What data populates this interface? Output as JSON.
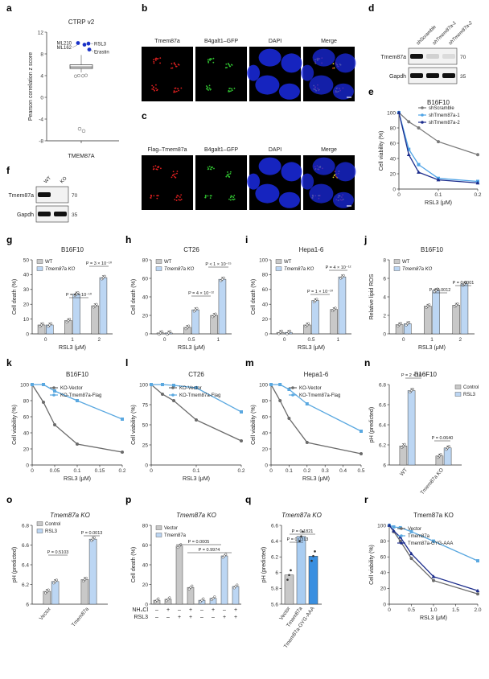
{
  "panel_labels": {
    "a": "a",
    "b": "b",
    "c": "c",
    "d": "d",
    "e": "e",
    "f": "f",
    "g": "g",
    "h": "h",
    "i": "i",
    "j": "j",
    "k": "k",
    "l": "l",
    "m": "m",
    "n": "n",
    "o": "o",
    "p": "p",
    "q": "q",
    "r": "r"
  },
  "colors": {
    "wt": "#c8c8c8",
    "ko": "#bcd6f3",
    "vector_line": "#6b6b6b",
    "flag_line": "#5aa8e0",
    "sh_scramble": "#7a7a7a",
    "sh1": "#4ea3e6",
    "sh2": "#1b2c8c",
    "dot_blue": "#1a32c8",
    "q_light": "#a9cdf2",
    "q_dark": "#3a8fe0"
  },
  "microscopy": {
    "b": {
      "headers": [
        "Tmem87a",
        "B4galt1–GFP",
        "DAPI",
        "Merge"
      ]
    },
    "c": {
      "headers": [
        "Flag–Tmem87a",
        "B4galt1–GFP",
        "DAPI",
        "Merge"
      ]
    }
  },
  "blots": {
    "d": {
      "lanes": [
        "shScramble",
        "shTmem87a-1",
        "shTmem87a-2"
      ],
      "rows": [
        {
          "label": "Tmem87a",
          "mw": "70"
        },
        {
          "label": "Gapdh",
          "mw": "35"
        }
      ]
    },
    "f": {
      "lanes": [
        "WT",
        "KO"
      ],
      "rows": [
        {
          "label": "Tmem87a",
          "mw": "70"
        },
        {
          "label": "Gapdh",
          "mw": "35"
        }
      ]
    }
  },
  "chart_data": [
    {
      "id": "a",
      "type": "scatter",
      "title": "CTRP v2",
      "xlabel": "TMEM87A",
      "ylabel": "Pearson correlation z score",
      "ylim": [
        -8,
        12
      ],
      "yticks": [
        -8,
        -4,
        0,
        4,
        8,
        12
      ],
      "highlighted": [
        {
          "label": "ML210",
          "y": 10.0
        },
        {
          "label": "ML162",
          "y": 9.7
        },
        {
          "label": "RSL3",
          "y": 9.9
        },
        {
          "label": "Erastin",
          "y": 8.8
        }
      ],
      "box": {
        "median": 5.6,
        "q1": 5.3,
        "q3": 6.0
      },
      "outliers_low": [
        -5.8,
        -6.2
      ]
    },
    {
      "id": "e",
      "type": "line",
      "title": "B16F10",
      "xlabel": "RSL3 (μM)",
      "ylabel": "Cell viability (%)",
      "xlim": [
        0,
        0.2
      ],
      "ylim": [
        0,
        100
      ],
      "xticks": [
        "0",
        "0.1",
        "0.2"
      ],
      "yticks": [
        0,
        20,
        40,
        60,
        80,
        100
      ],
      "legend": [
        "shScramble",
        "shTmem87a-1",
        "shTmem87a-2"
      ],
      "series": [
        {
          "name": "shScramble",
          "x": [
            0,
            0.025,
            0.05,
            0.1,
            0.2
          ],
          "y": [
            100,
            88,
            80,
            62,
            45
          ]
        },
        {
          "name": "shTmem87a-1",
          "x": [
            0,
            0.025,
            0.05,
            0.1,
            0.2
          ],
          "y": [
            100,
            52,
            32,
            14,
            10
          ]
        },
        {
          "name": "shTmem87a-2",
          "x": [
            0,
            0.025,
            0.05,
            0.1,
            0.2
          ],
          "y": [
            100,
            45,
            22,
            12,
            8
          ]
        }
      ]
    },
    {
      "id": "g",
      "type": "bar",
      "title": "B16F10",
      "xlabel": "RSL3 (μM)",
      "ylabel": "Cell death (%)",
      "categories": [
        "0",
        "1",
        "2"
      ],
      "ylim": [
        0,
        50
      ],
      "yticks": [
        0,
        10,
        20,
        30,
        40,
        50
      ],
      "legend": [
        "WT",
        "Tmem87a KO"
      ],
      "series": [
        {
          "name": "WT",
          "values": [
            6,
            9,
            19
          ]
        },
        {
          "name": "Tmem87a KO",
          "values": [
            6,
            27,
            38
          ]
        }
      ],
      "annotations": [
        "P = 4 × 10⁻¹⁰",
        "P = 3 × 10⁻¹⁰"
      ]
    },
    {
      "id": "h",
      "type": "bar",
      "title": "CT26",
      "xlabel": "RSL3 (μM)",
      "ylabel": "Cell death (%)",
      "categories": [
        "0",
        "0.5",
        "1"
      ],
      "ylim": [
        0,
        80
      ],
      "yticks": [
        0,
        20,
        40,
        60,
        80
      ],
      "legend": [
        "WT",
        "Tmem87a KO"
      ],
      "series": [
        {
          "name": "WT",
          "values": [
            1,
            7,
            20
          ]
        },
        {
          "name": "Tmem87a KO",
          "values": [
            1,
            26,
            59
          ]
        }
      ],
      "annotations": [
        "P = 4 × 10⁻¹²",
        "P < 1 × 10⁻¹⁵"
      ]
    },
    {
      "id": "i",
      "type": "bar",
      "title": "Hepa1-6",
      "xlabel": "RSL3 (μM)",
      "ylabel": "Cell death (%)",
      "categories": [
        "0",
        "0.5",
        "1"
      ],
      "ylim": [
        0,
        100
      ],
      "yticks": [
        0,
        20,
        40,
        60,
        80,
        100
      ],
      "legend": [
        "WT",
        "Tmem87a KO"
      ],
      "series": [
        {
          "name": "WT",
          "values": [
            2,
            12,
            33
          ]
        },
        {
          "name": "Tmem87a KO",
          "values": [
            2,
            45,
            77
          ]
        }
      ],
      "annotations": [
        "P = 1 × 10⁻¹⁰",
        "P = 4 × 10⁻¹²"
      ]
    },
    {
      "id": "j",
      "type": "bar",
      "title": "B16F10",
      "xlabel": "RSL3 (μM)",
      "ylabel": "Relative lipid ROS",
      "categories": [
        "0",
        "1",
        "2"
      ],
      "ylim": [
        0,
        8
      ],
      "yticks": [
        0,
        2,
        4,
        6,
        8
      ],
      "legend": [
        "WT",
        "Tmem87a KO"
      ],
      "series": [
        {
          "name": "WT",
          "values": [
            1.0,
            3.0,
            3.1
          ]
        },
        {
          "name": "Tmem87a KO",
          "values": [
            1.1,
            4.7,
            5.4
          ]
        }
      ],
      "annotations": [
        "P = 0.0012",
        "P = 0.0001"
      ]
    },
    {
      "id": "k",
      "type": "line",
      "title": "B16F10",
      "xlabel": "RSL3 (μM)",
      "ylabel": "Cell viability (%)",
      "xlim": [
        0,
        0.2
      ],
      "ylim": [
        0,
        100
      ],
      "xticks": [
        "0",
        "0.05",
        "0.1",
        "0.15",
        "0.2"
      ],
      "yticks": [
        0,
        20,
        40,
        60,
        80,
        100
      ],
      "legend": [
        "KO-Vector",
        "KO-Tmem87a-Flag"
      ],
      "series": [
        {
          "name": "KO-Vector",
          "x": [
            0,
            0.025,
            0.05,
            0.1,
            0.2
          ],
          "y": [
            100,
            78,
            50,
            26,
            16
          ]
        },
        {
          "name": "KO-Tmem87a-Flag",
          "x": [
            0,
            0.025,
            0.05,
            0.1,
            0.2
          ],
          "y": [
            100,
            100,
            92,
            80,
            57
          ]
        }
      ]
    },
    {
      "id": "l",
      "type": "line",
      "title": "CT26",
      "xlabel": "RSL3 (μM)",
      "ylabel": "Cell viability (%)",
      "xlim": [
        0,
        0.2
      ],
      "ylim": [
        0,
        100
      ],
      "xticks": [
        "0",
        "0.1",
        "0.2"
      ],
      "yticks": [
        0,
        25,
        50,
        75,
        100
      ],
      "legend": [
        "KO-Vector",
        "KO-Tmem87a-Flag"
      ],
      "series": [
        {
          "name": "KO-Vector",
          "x": [
            0,
            0.025,
            0.05,
            0.1,
            0.2
          ],
          "y": [
            100,
            88,
            80,
            56,
            30
          ]
        },
        {
          "name": "KO-Tmem87a-Flag",
          "x": [
            0,
            0.025,
            0.05,
            0.1,
            0.2
          ],
          "y": [
            100,
            100,
            99,
            96,
            66
          ]
        }
      ]
    },
    {
      "id": "m",
      "type": "line",
      "title": "Hepa1-6",
      "xlabel": "RSL3 (μM)",
      "ylabel": "Cell viability (%)",
      "xlim": [
        0,
        0.5
      ],
      "ylim": [
        0,
        100
      ],
      "xticks": [
        "0",
        "0.1",
        "0.2",
        "0.3",
        "0.4",
        "0.5"
      ],
      "yticks": [
        0,
        20,
        40,
        60,
        80,
        100
      ],
      "legend": [
        "KO-Vector",
        "KO-Tmem87a-Flag"
      ],
      "series": [
        {
          "name": "KO-Vector",
          "x": [
            0,
            0.05,
            0.1,
            0.2,
            0.5
          ],
          "y": [
            100,
            80,
            58,
            28,
            14
          ]
        },
        {
          "name": "KO-Tmem87a-Flag",
          "x": [
            0,
            0.05,
            0.1,
            0.2,
            0.5
          ],
          "y": [
            100,
            100,
            94,
            76,
            42
          ]
        }
      ]
    },
    {
      "id": "n",
      "type": "bar",
      "title": "B16F10",
      "ylabel": "pH (predicted)",
      "categories": [
        "WT",
        "Tmem87a KO"
      ],
      "ylim": [
        6.0,
        6.8
      ],
      "yticks": [
        6.0,
        6.2,
        6.4,
        6.6,
        6.8
      ],
      "legend": [
        "Control",
        "RSL3"
      ],
      "series": [
        {
          "name": "Control",
          "values": [
            6.19,
            6.09
          ]
        },
        {
          "name": "RSL3",
          "values": [
            6.74,
            6.17
          ]
        }
      ],
      "annotations": [
        "P = 2 × 10⁻⁷",
        "P = 0.0640"
      ]
    },
    {
      "id": "o",
      "type": "bar",
      "title": "Tmem87a KO",
      "ylabel": "pH (predicted)",
      "categories": [
        "Vector",
        "Tmem87a"
      ],
      "ylim": [
        6.0,
        6.8
      ],
      "yticks": [
        6.0,
        6.2,
        6.4,
        6.6,
        6.8
      ],
      "legend": [
        "Control",
        "RSL3"
      ],
      "series": [
        {
          "name": "Control",
          "values": [
            6.13,
            6.25
          ]
        },
        {
          "name": "RSL3",
          "values": [
            6.23,
            6.66
          ]
        }
      ],
      "annotations": [
        "P = 0.5103",
        "P = 0.0013"
      ]
    },
    {
      "id": "p",
      "type": "bar",
      "title": "Tmem87a KO",
      "ylabel": "Cell death (%)",
      "categories": [
        "1",
        "2",
        "3",
        "4",
        "5",
        "6",
        "7",
        "8"
      ],
      "ylim": [
        0,
        80
      ],
      "yticks": [
        0,
        20,
        40,
        60,
        80
      ],
      "legend": [
        "Vector",
        "Tmem87a"
      ],
      "values": [
        4,
        5,
        59,
        17,
        4,
        6,
        49,
        18
      ],
      "nh4cl_row": [
        "–",
        "+",
        "–",
        "+",
        "–",
        "+",
        "–",
        "+"
      ],
      "rsl3_row": [
        "–",
        "–",
        "+",
        "+",
        "–",
        "–",
        "+",
        "+"
      ],
      "row_labels": [
        "NH₄Cl",
        "RSL3"
      ],
      "annotations": [
        "P = 0.0005",
        "P = 0.9974"
      ]
    },
    {
      "id": "q",
      "type": "bar",
      "title": "Tmem87a KO",
      "ylabel": "pH (predicted)",
      "categories": [
        "Vector",
        "Tmem87a",
        "Tmem87a-GYG-AAA"
      ],
      "ylim": [
        5.6,
        6.6
      ],
      "yticks": [
        5.6,
        5.8,
        6.0,
        6.2,
        6.4,
        6.6
      ],
      "values": [
        5.97,
        6.46,
        6.21
      ],
      "annotations": [
        "P = 0.1821",
        "P = 0.0313"
      ]
    },
    {
      "id": "r",
      "type": "line",
      "title": "Tmem87a KO",
      "xlabel": "RSL3 (μM)",
      "ylabel": "Cell viability (%)",
      "xlim": [
        0,
        2.0
      ],
      "ylim": [
        0,
        100
      ],
      "xticks": [
        "0",
        "0.5",
        "1.0",
        "1.5",
        "2.0"
      ],
      "yticks": [
        0,
        20,
        40,
        60,
        80,
        100
      ],
      "legend": [
        "Vector",
        "Tmem87a",
        "Tmem87a-GYG-AAA"
      ],
      "series": [
        {
          "name": "Vector",
          "x": [
            0,
            0.1,
            0.25,
            0.5,
            1.0,
            2.0
          ],
          "y": [
            100,
            92,
            80,
            58,
            30,
            13
          ]
        },
        {
          "name": "Tmem87a",
          "x": [
            0,
            0.1,
            0.25,
            0.5,
            1.0,
            2.0
          ],
          "y": [
            100,
            98,
            97,
            92,
            80,
            55
          ]
        },
        {
          "name": "Tmem87a-GYG-AAA",
          "x": [
            0,
            0.1,
            0.25,
            0.5,
            1.0,
            2.0
          ],
          "y": [
            100,
            93,
            85,
            64,
            35,
            17
          ]
        }
      ]
    }
  ]
}
